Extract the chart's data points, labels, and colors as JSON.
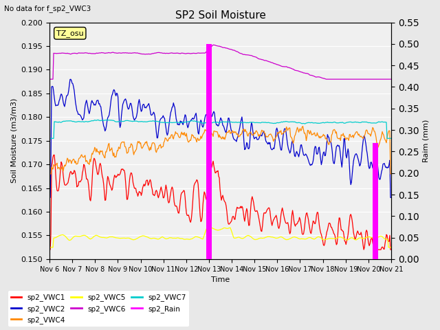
{
  "title": "SP2 Soil Moisture",
  "subtitle": "No data for f_sp2_VWC3",
  "xlabel": "Time",
  "ylabel_left": "Soil Moisture (m3/m3)",
  "ylabel_right": "Raim (mm)",
  "ylim_left": [
    0.15,
    0.2
  ],
  "ylim_right": [
    0.0,
    0.55
  ],
  "yticks_left": [
    0.15,
    0.155,
    0.16,
    0.165,
    0.17,
    0.175,
    0.18,
    0.185,
    0.19,
    0.195,
    0.2
  ],
  "yticks_right": [
    0.0,
    0.05,
    0.1,
    0.15,
    0.2,
    0.25,
    0.3,
    0.35,
    0.4,
    0.45,
    0.5,
    0.55
  ],
  "xtick_labels": [
    "Nov 6",
    "Nov 7",
    "Nov 8",
    "Nov 9",
    "Nov 10",
    "Nov 11",
    "Nov 12",
    "Nov 13",
    "Nov 14",
    "Nov 15",
    "Nov 16",
    "Nov 17",
    "Nov 18",
    "Nov 19",
    "Nov 20",
    "Nov 21"
  ],
  "colors": {
    "sp2_VWC1": "#ff0000",
    "sp2_VWC2": "#0000cc",
    "sp2_VWC4": "#ff8800",
    "sp2_VWC5": "#ffff00",
    "sp2_VWC6": "#cc00cc",
    "sp2_VWC7": "#00cccc",
    "sp2_Rain": "#ff00ff"
  },
  "tz_label": "TZ_osu",
  "tz_bg": "#ffff99",
  "bg_color": "#e8e8e8",
  "plot_bg": "#f0f0f0"
}
